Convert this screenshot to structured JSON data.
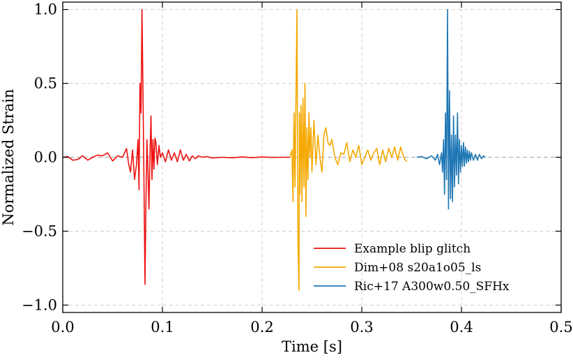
{
  "chart_data": {
    "type": "line",
    "title": "",
    "xlabel": "Time [s]",
    "ylabel": "Normalized Strain",
    "xlim": [
      0.0,
      0.5
    ],
    "ylim": [
      -1.05,
      1.05
    ],
    "grid": true,
    "legend_position": "lower-right",
    "x_ticks": [
      0.0,
      0.1,
      0.2,
      0.3,
      0.4,
      0.5
    ],
    "x_tick_labels": [
      "0.0",
      "0.1",
      "0.2",
      "0.3",
      "0.4",
      "0.5"
    ],
    "y_ticks": [
      -1.0,
      -0.5,
      0.0,
      0.5,
      1.0
    ],
    "y_tick_labels": [
      "−1.0",
      "−0.5",
      "0.0",
      "0.5",
      "1.0"
    ],
    "reference_line": {
      "y": 0.0,
      "style": "dashed",
      "color": "#bbbbbb"
    },
    "series": [
      {
        "name": "Example blip glitch",
        "color": "#ee1111",
        "x": [
          0.0,
          0.005,
          0.01,
          0.015,
          0.02,
          0.025,
          0.03,
          0.035,
          0.04,
          0.045,
          0.05,
          0.055,
          0.06,
          0.064,
          0.066,
          0.068,
          0.07,
          0.072,
          0.074,
          0.0755,
          0.0765,
          0.0775,
          0.0785,
          0.0795,
          0.0805,
          0.0815,
          0.0825,
          0.0835,
          0.0845,
          0.0855,
          0.0865,
          0.0875,
          0.0885,
          0.0895,
          0.0905,
          0.0915,
          0.0925,
          0.0935,
          0.095,
          0.0965,
          0.098,
          0.1,
          0.103,
          0.106,
          0.109,
          0.112,
          0.115,
          0.118,
          0.121,
          0.124,
          0.127,
          0.13,
          0.133,
          0.136,
          0.14,
          0.145,
          0.15,
          0.16,
          0.17,
          0.18,
          0.19,
          0.2,
          0.21,
          0.22,
          0.228
        ],
        "y": [
          0.0,
          0.005,
          -0.02,
          -0.015,
          0.01,
          -0.02,
          0.0,
          0.015,
          0.01,
          0.03,
          -0.025,
          0.01,
          0.0,
          0.06,
          -0.04,
          -0.1,
          0.05,
          -0.15,
          -0.05,
          0.12,
          -0.22,
          0.5,
          0.3,
          1.0,
          0.45,
          -0.15,
          -0.86,
          -0.3,
          0.12,
          -0.1,
          -0.35,
          0.0,
          0.28,
          -0.15,
          0.12,
          -0.08,
          0.13,
          0.1,
          -0.05,
          0.08,
          0.0,
          0.03,
          -0.03,
          0.05,
          -0.02,
          0.03,
          -0.03,
          0.05,
          -0.02,
          0.02,
          -0.025,
          0.01,
          -0.01,
          0.01,
          0.0,
          0.005,
          -0.005,
          0.0,
          -0.004,
          0.003,
          -0.003,
          0.002,
          -0.001,
          0.0,
          0.0
        ]
      },
      {
        "name": "Dim+08 s20a1o05_ls",
        "color": "#f5a800",
        "x": [
          0.228,
          0.23,
          0.231,
          0.232,
          0.233,
          0.234,
          0.235,
          0.236,
          0.237,
          0.2375,
          0.238,
          0.239,
          0.24,
          0.241,
          0.242,
          0.243,
          0.244,
          0.245,
          0.246,
          0.247,
          0.248,
          0.249,
          0.25,
          0.252,
          0.254,
          0.256,
          0.258,
          0.26,
          0.262,
          0.264,
          0.266,
          0.268,
          0.27,
          0.273,
          0.276,
          0.279,
          0.282,
          0.285,
          0.288,
          0.291,
          0.294,
          0.297,
          0.3,
          0.303,
          0.306,
          0.309,
          0.312,
          0.315,
          0.318,
          0.321,
          0.324,
          0.327,
          0.33,
          0.333,
          0.336,
          0.339,
          0.342,
          0.345
        ],
        "y": [
          0.0,
          0.05,
          -0.3,
          0.3,
          -0.2,
          0.4,
          1.0,
          -0.6,
          -0.9,
          0.3,
          -0.25,
          0.35,
          -0.3,
          0.4,
          -0.2,
          0.5,
          -0.4,
          0.2,
          -0.15,
          0.3,
          0.0,
          0.2,
          -0.1,
          0.25,
          -0.05,
          0.15,
          0.0,
          -0.1,
          0.15,
          0.2,
          0.1,
          0.08,
          0.12,
          0.0,
          -0.05,
          0.03,
          0.02,
          0.1,
          -0.03,
          0.05,
          0.0,
          0.08,
          -0.05,
          0.0,
          0.05,
          -0.02,
          0.03,
          0.06,
          -0.05,
          0.05,
          -0.03,
          0.06,
          0.0,
          0.07,
          -0.02,
          0.07,
          0.0,
          -0.03
        ]
      },
      {
        "name": "Ric+17 A300w0.50_SFHx",
        "color": "#1f77b4",
        "x": [
          0.355,
          0.36,
          0.365,
          0.37,
          0.374,
          0.376,
          0.378,
          0.38,
          0.381,
          0.382,
          0.383,
          0.384,
          0.385,
          0.386,
          0.387,
          0.388,
          0.389,
          0.39,
          0.391,
          0.392,
          0.393,
          0.394,
          0.395,
          0.396,
          0.397,
          0.398,
          0.399,
          0.4,
          0.401,
          0.402,
          0.403,
          0.404,
          0.405,
          0.406,
          0.407,
          0.408,
          0.409,
          0.41,
          0.412,
          0.414,
          0.416,
          0.418,
          0.42,
          0.422,
          0.424
        ],
        "y": [
          0.0,
          0.005,
          -0.01,
          0.01,
          -0.02,
          0.02,
          -0.05,
          0.03,
          -0.1,
          0.12,
          -0.25,
          0.3,
          -0.15,
          1.0,
          -0.35,
          0.45,
          -0.28,
          0.15,
          -0.3,
          0.28,
          -0.2,
          0.15,
          -0.12,
          0.3,
          -0.18,
          0.12,
          -0.1,
          0.08,
          -0.06,
          0.1,
          -0.06,
          0.07,
          -0.04,
          0.05,
          -0.03,
          0.04,
          -0.02,
          0.03,
          -0.02,
          0.02,
          -0.02,
          0.02,
          -0.01,
          0.01,
          0.0
        ]
      }
    ]
  }
}
